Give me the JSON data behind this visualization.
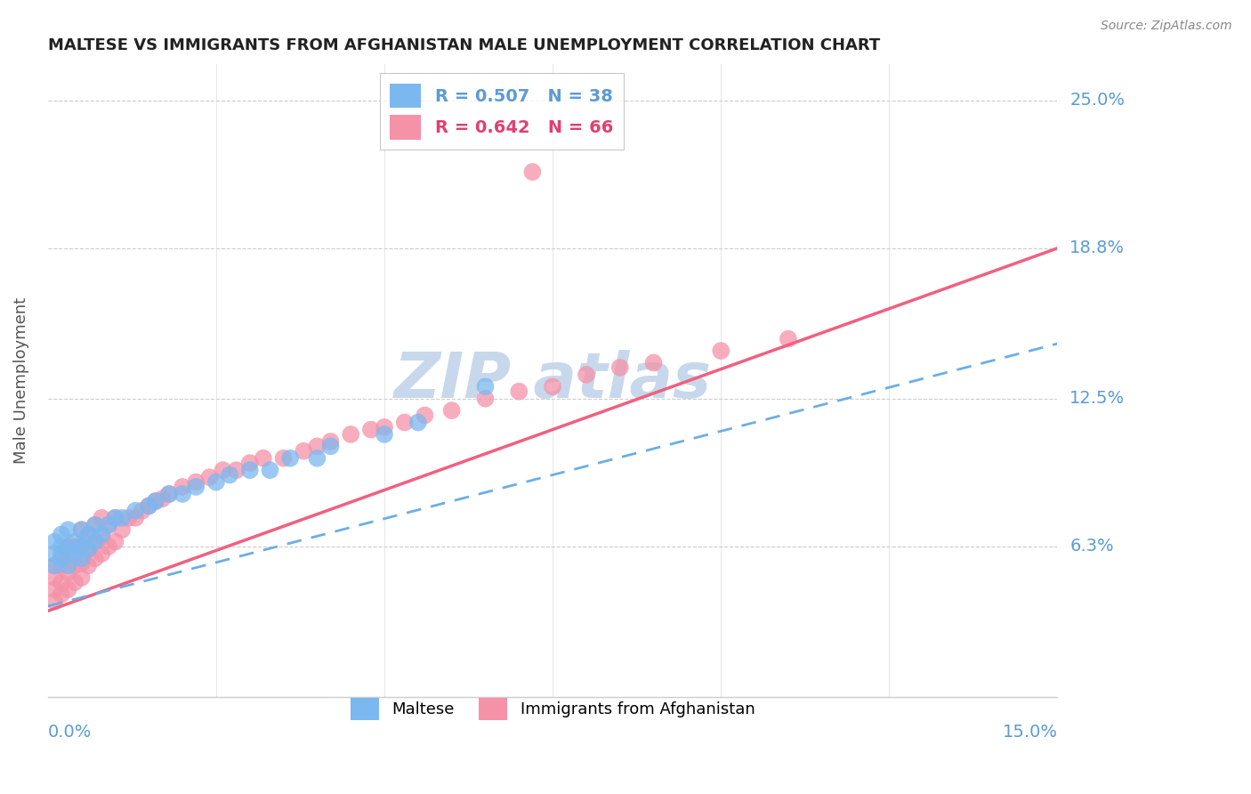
{
  "title": "MALTESE VS IMMIGRANTS FROM AFGHANISTAN MALE UNEMPLOYMENT CORRELATION CHART",
  "source": "Source: ZipAtlas.com",
  "ylabel": "Male Unemployment",
  "xlim": [
    0.0,
    0.15
  ],
  "ylim": [
    0.0,
    0.265
  ],
  "ytick_vals": [
    0.063,
    0.125,
    0.188,
    0.25
  ],
  "ytick_labels": [
    "6.3%",
    "12.5%",
    "18.8%",
    "25.0%"
  ],
  "maltese_color": "#7bb8f0",
  "afghanistan_color": "#f592a8",
  "maltese_line_color": "#6aaee8",
  "afghanistan_line_color": "#f06080",
  "watermark_color": "#c8d8ec",
  "title_color": "#222222",
  "label_color": "#5b9bd5",
  "ylabel_color": "#555555",
  "grid_color": "#cccccc",
  "legend_R1": "R = 0.507",
  "legend_N1": "N = 38",
  "legend_R2": "R = 0.642",
  "legend_N2": "N = 66",
  "legend_color1": "#5b9bd5",
  "legend_color2": "#e04070",
  "bottom_legend1": "Maltese",
  "bottom_legend2": "Immigrants from Afghanistan",
  "trend_maltese_x0": 0.0,
  "trend_maltese_y0": 0.038,
  "trend_maltese_x1": 0.15,
  "trend_maltese_y1": 0.148,
  "trend_afghan_x0": 0.0,
  "trend_afghan_y0": 0.036,
  "trend_afghan_x1": 0.15,
  "trend_afghan_y1": 0.188,
  "maltese_x": [
    0.001,
    0.001,
    0.001,
    0.002,
    0.002,
    0.002,
    0.003,
    0.003,
    0.003,
    0.004,
    0.004,
    0.005,
    0.005,
    0.005,
    0.006,
    0.006,
    0.007,
    0.007,
    0.008,
    0.009,
    0.01,
    0.011,
    0.013,
    0.015,
    0.016,
    0.018,
    0.02,
    0.022,
    0.025,
    0.027,
    0.03,
    0.033,
    0.036,
    0.04,
    0.042,
    0.05,
    0.055,
    0.065
  ],
  "maltese_y": [
    0.055,
    0.06,
    0.065,
    0.058,
    0.063,
    0.068,
    0.055,
    0.062,
    0.07,
    0.06,
    0.065,
    0.058,
    0.063,
    0.07,
    0.062,
    0.068,
    0.065,
    0.072,
    0.068,
    0.072,
    0.075,
    0.075,
    0.078,
    0.08,
    0.082,
    0.085,
    0.085,
    0.088,
    0.09,
    0.093,
    0.095,
    0.095,
    0.1,
    0.1,
    0.105,
    0.11,
    0.115,
    0.13
  ],
  "afghanistan_x": [
    0.001,
    0.001,
    0.001,
    0.001,
    0.002,
    0.002,
    0.002,
    0.002,
    0.003,
    0.003,
    0.003,
    0.003,
    0.004,
    0.004,
    0.004,
    0.005,
    0.005,
    0.005,
    0.005,
    0.006,
    0.006,
    0.006,
    0.007,
    0.007,
    0.007,
    0.008,
    0.008,
    0.008,
    0.009,
    0.009,
    0.01,
    0.01,
    0.011,
    0.012,
    0.013,
    0.014,
    0.015,
    0.016,
    0.017,
    0.018,
    0.02,
    0.022,
    0.024,
    0.026,
    0.028,
    0.03,
    0.032,
    0.035,
    0.038,
    0.04,
    0.042,
    0.045,
    0.048,
    0.05,
    0.053,
    0.056,
    0.06,
    0.065,
    0.07,
    0.075,
    0.08,
    0.085,
    0.09,
    0.1,
    0.11,
    0.072
  ],
  "afghanistan_y": [
    0.04,
    0.045,
    0.05,
    0.055,
    0.043,
    0.048,
    0.055,
    0.06,
    0.045,
    0.052,
    0.058,
    0.063,
    0.048,
    0.055,
    0.063,
    0.05,
    0.056,
    0.063,
    0.07,
    0.055,
    0.062,
    0.068,
    0.058,
    0.065,
    0.072,
    0.06,
    0.067,
    0.075,
    0.063,
    0.072,
    0.065,
    0.075,
    0.07,
    0.075,
    0.075,
    0.078,
    0.08,
    0.082,
    0.083,
    0.085,
    0.088,
    0.09,
    0.092,
    0.095,
    0.095,
    0.098,
    0.1,
    0.1,
    0.103,
    0.105,
    0.107,
    0.11,
    0.112,
    0.113,
    0.115,
    0.118,
    0.12,
    0.125,
    0.128,
    0.13,
    0.135,
    0.138,
    0.14,
    0.145,
    0.15,
    0.22
  ]
}
